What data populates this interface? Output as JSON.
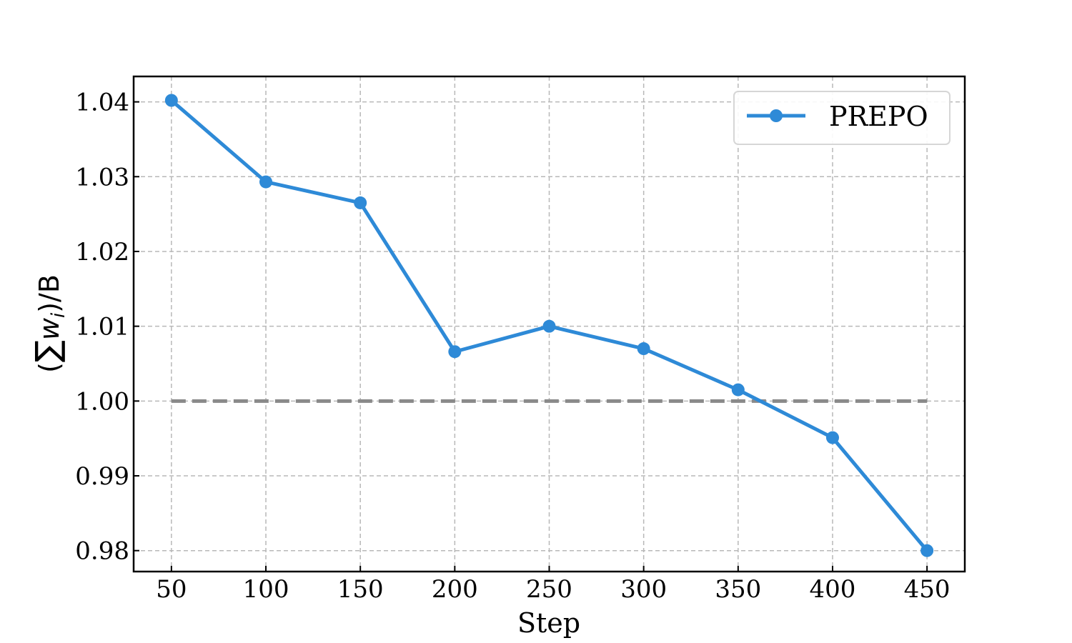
{
  "chart_data": {
    "type": "line",
    "x": [
      50,
      100,
      150,
      200,
      250,
      300,
      350,
      400,
      450
    ],
    "series": [
      {
        "name": "PREPO",
        "values": [
          1.0402,
          1.0293,
          1.0265,
          1.0066,
          1.01,
          1.007,
          1.0015,
          0.9951,
          0.98
        ],
        "color": "#2e8ad7",
        "marker": "circle"
      }
    ],
    "reference_line": {
      "y": 1.0,
      "x_range": [
        50,
        450
      ],
      "style": "dashed",
      "color": "#8a8a8a"
    },
    "xlabel": "Step",
    "ylabel": {
      "prefix": "(",
      "sigma": "∑",
      "w": "w",
      "sub": "i",
      "suffix": ")/B"
    },
    "xticks": [
      50,
      100,
      150,
      200,
      250,
      300,
      350,
      400,
      450
    ],
    "xtick_labels": [
      "50",
      "100",
      "150",
      "200",
      "250",
      "300",
      "350",
      "400",
      "450"
    ],
    "yticks": [
      0.98,
      0.99,
      1.0,
      1.01,
      1.02,
      1.03,
      1.04
    ],
    "ytick_labels": [
      "0.98",
      "0.99",
      "1.00",
      "1.01",
      "1.02",
      "1.03",
      "1.04"
    ],
    "xlim": [
      30,
      470
    ],
    "ylim": [
      0.9772,
      1.0434
    ],
    "grid": true,
    "legend_position": "top-right"
  }
}
